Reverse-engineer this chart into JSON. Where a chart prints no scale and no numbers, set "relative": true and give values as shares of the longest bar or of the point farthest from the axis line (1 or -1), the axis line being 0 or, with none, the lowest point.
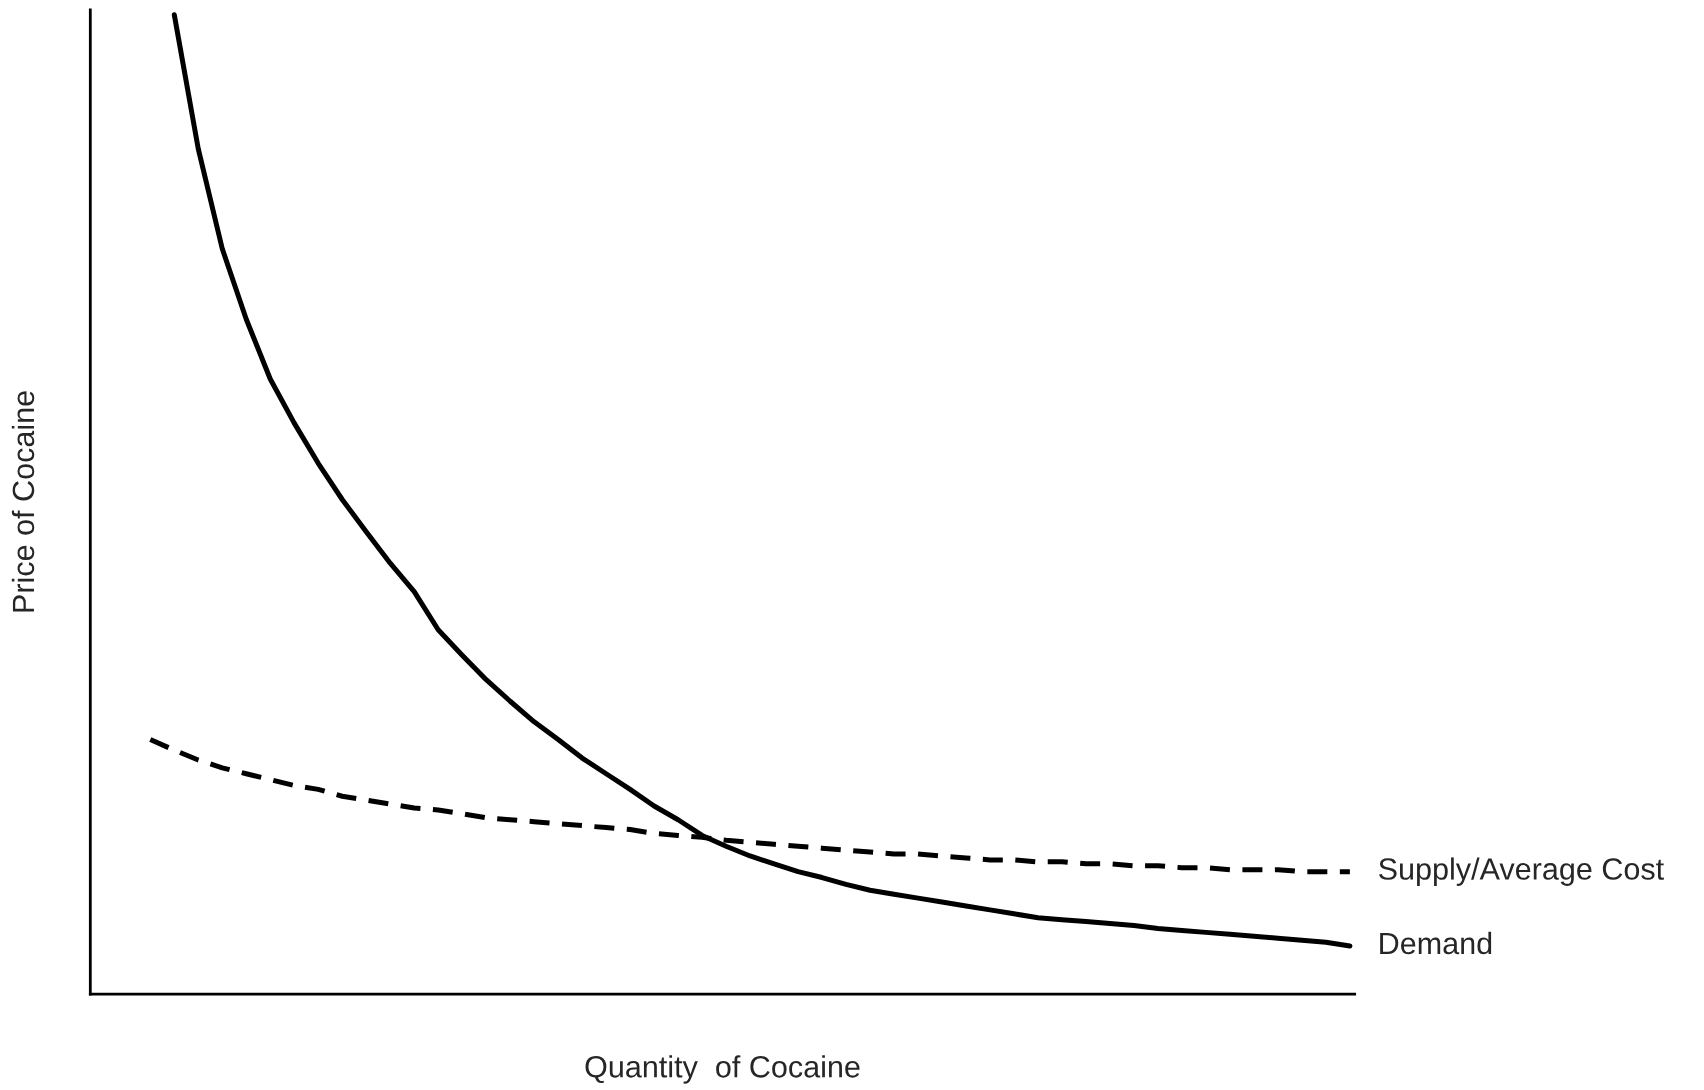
{
  "chart_data": {
    "type": "line",
    "relative": true,
    "xlabel": "Quantity  of Cocaine",
    "ylabel": "Price of Cocaine",
    "legend": false,
    "marker": "none",
    "categories": [
      null,
      null,
      null,
      null,
      null,
      null,
      null,
      null,
      null,
      null,
      null,
      null,
      null,
      null,
      null,
      null,
      null,
      null,
      null,
      null,
      null,
      null,
      null,
      null,
      null,
      null,
      null,
      null,
      null,
      null,
      null,
      null,
      null,
      null,
      null,
      null,
      null,
      null,
      null,
      null,
      null,
      null,
      null,
      null,
      null,
      null,
      null,
      null,
      null,
      null,
      null
    ],
    "series": [
      {
        "name": "Supply/Average Cost",
        "color": "#000000",
        "line_style": "dashed",
        "values": [
          0.26,
          0.249,
          0.239,
          0.231,
          0.225,
          0.219,
          0.213,
          0.209,
          0.202,
          0.198,
          0.194,
          0.19,
          0.188,
          0.184,
          0.18,
          0.178,
          0.176,
          0.174,
          0.172,
          0.17,
          0.168,
          0.164,
          0.162,
          0.16,
          0.157,
          0.155,
          0.153,
          0.151,
          0.149,
          0.147,
          0.145,
          0.143,
          0.143,
          0.141,
          0.139,
          0.137,
          0.137,
          0.135,
          0.135,
          0.133,
          0.133,
          0.131,
          0.131,
          0.129,
          0.129,
          0.127,
          0.127,
          0.127,
          0.125,
          0.125,
          0.125
        ]
      },
      {
        "name": "Demand",
        "color": "#000000",
        "line_style": "solid",
        "values": [
          null,
          1.0,
          0.863,
          0.761,
          0.689,
          0.628,
          0.583,
          0.542,
          0.505,
          0.472,
          0.44,
          0.411,
          0.372,
          0.346,
          0.321,
          0.299,
          0.278,
          0.26,
          0.241,
          0.225,
          0.209,
          0.192,
          0.178,
          0.162,
          0.151,
          0.141,
          0.133,
          0.125,
          0.119,
          0.112,
          0.106,
          0.102,
          0.098,
          0.094,
          0.09,
          0.086,
          0.082,
          0.078,
          0.076,
          0.074,
          0.072,
          0.07,
          0.067,
          0.065,
          0.063,
          0.061,
          0.059,
          0.057,
          0.055,
          0.053,
          0.049
        ]
      }
    ]
  }
}
